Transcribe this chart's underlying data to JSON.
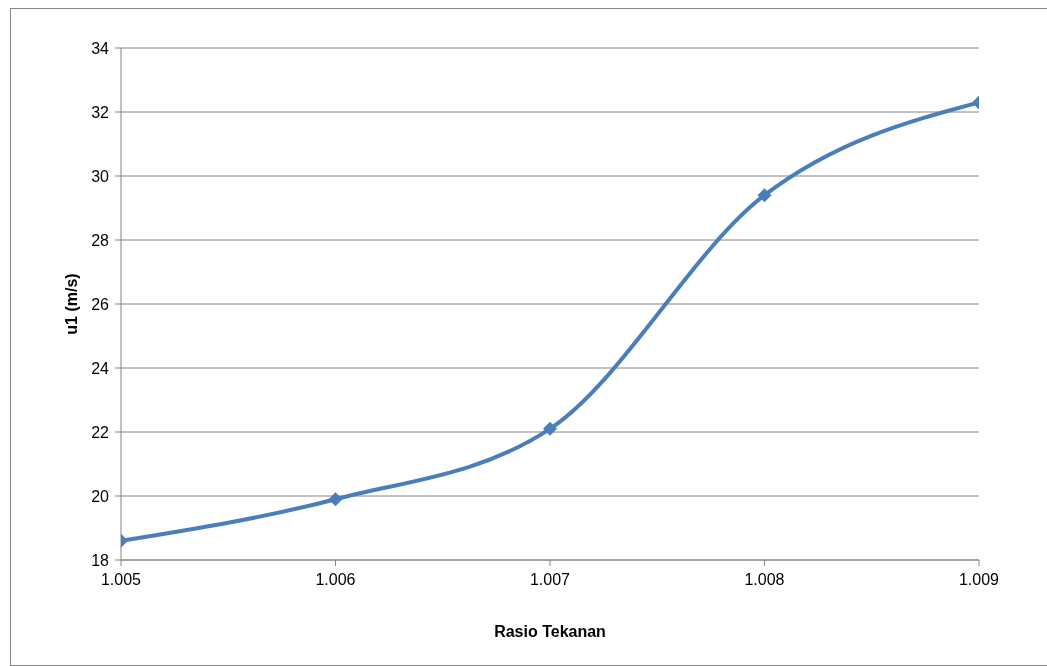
{
  "chart_data": {
    "type": "line",
    "xlabel": "Rasio Tekanan",
    "ylabel": "u1 (m/s)",
    "x": [
      1.005,
      1.006,
      1.007,
      1.008,
      1.009
    ],
    "series": [
      {
        "color": "#4a7ebb",
        "values": [
          18.6,
          19.9,
          22.1,
          29.4,
          32.3
        ]
      }
    ],
    "xlim": [
      1.005,
      1.009
    ],
    "xticks": [
      1.005,
      1.006,
      1.007,
      1.008,
      1.009
    ],
    "ylim": [
      18,
      34
    ],
    "yticks": [
      18,
      20,
      22,
      24,
      26,
      28,
      30,
      32,
      34
    ],
    "grid": "y",
    "legend": false,
    "marker": "diamond",
    "line_style": "solid"
  }
}
